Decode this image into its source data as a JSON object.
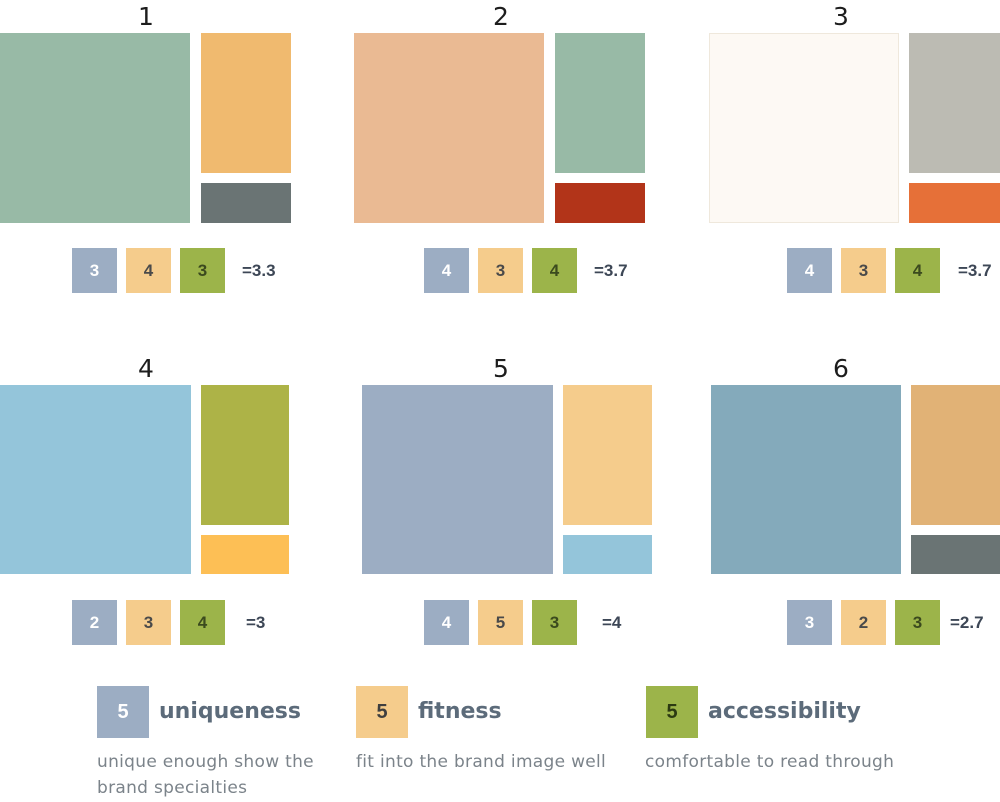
{
  "palettes": [
    {
      "number": "1",
      "colors": {
        "main": "#98baa6",
        "top": "#f0ba6f",
        "bottom": "#6a7474"
      },
      "scores": {
        "uniqueness": "3",
        "fitness": "4",
        "accessibility": "3"
      },
      "average": "=3.3"
    },
    {
      "number": "2",
      "colors": {
        "main": "#eaba93",
        "top": "#98baa6",
        "bottom": "#b23419"
      },
      "scores": {
        "uniqueness": "4",
        "fitness": "3",
        "accessibility": "4"
      },
      "average": "=3.7"
    },
    {
      "number": "3",
      "colors": {
        "main": "#fdf9f4",
        "top": "#bcbbb3",
        "bottom": "#e67038"
      },
      "scores": {
        "uniqueness": "4",
        "fitness": "3",
        "accessibility": "4"
      },
      "average": "=3.7"
    },
    {
      "number": "4",
      "colors": {
        "main": "#94c5da",
        "top": "#adb347",
        "bottom": "#fdbf55"
      },
      "scores": {
        "uniqueness": "2",
        "fitness": "3",
        "accessibility": "4"
      },
      "average": "=3"
    },
    {
      "number": "5",
      "colors": {
        "main": "#9cadc3",
        "top": "#f5cc8c",
        "bottom": "#94c5da"
      },
      "scores": {
        "uniqueness": "4",
        "fitness": "5",
        "accessibility": "3"
      },
      "average": "=4"
    },
    {
      "number": "6",
      "colors": {
        "main": "#84aabb",
        "top": "#e1b276",
        "bottom": "#6a7474"
      },
      "scores": {
        "uniqueness": "3",
        "fitness": "2",
        "accessibility": "3"
      },
      "average": "=2.7"
    }
  ],
  "criteria_colors": {
    "uniqueness": "#9cadc3",
    "fitness": "#f5cc8c",
    "accessibility": "#9cb44a"
  },
  "legend": [
    {
      "key": "uniqueness",
      "score": "5",
      "title": "uniqueness",
      "description_line1": "unique enough show the",
      "description_line2": "brand specialties"
    },
    {
      "key": "fitness",
      "score": "5",
      "title": "fitness",
      "description_line1": "fit into the brand image well",
      "description_line2": ""
    },
    {
      "key": "accessibility",
      "score": "5",
      "title": "accessibility",
      "description_line1": "comfortable to read through",
      "description_line2": ""
    }
  ]
}
